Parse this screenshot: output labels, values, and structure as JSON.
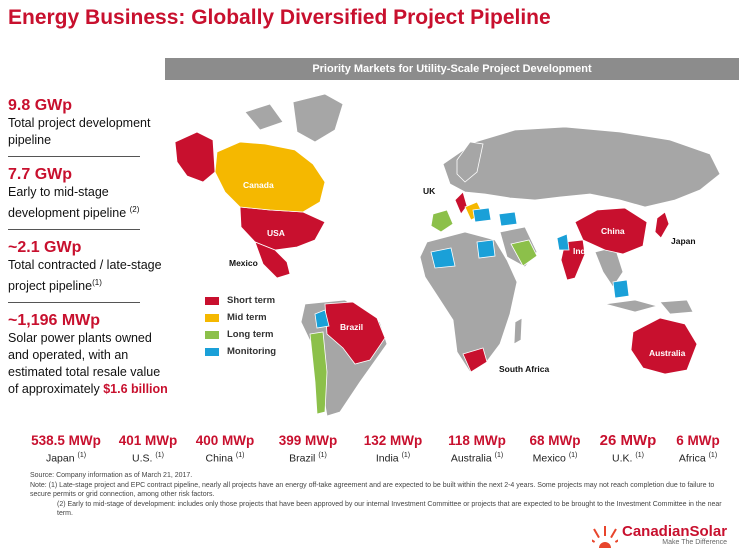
{
  "title": "Energy Business: Globally Diversified Project Pipeline",
  "banner": "Priority Markets for Utility-Scale Project Development",
  "stats": [
    {
      "value": "9.8 GWp",
      "desc": "Total project development pipeline",
      "note": "",
      "hl": ""
    },
    {
      "value": "7.7 GWp",
      "desc": "Early to mid-stage development pipeline",
      "note": "(2)",
      "hl": ""
    },
    {
      "value": "~2.1 GWp",
      "desc": "Total contracted / late-stage project pipeline",
      "note": "(1)",
      "hl": ""
    },
    {
      "value": "~1,196 MWp",
      "desc": "Solar power plants owned and operated, with an estimated total resale value of approximately",
      "note": "",
      "hl": "$1.6 billion"
    }
  ],
  "legend": [
    {
      "label": "Short term",
      "color": "#c8102e"
    },
    {
      "label": "Mid term",
      "color": "#f5b800"
    },
    {
      "label": "Long term",
      "color": "#8cc04a"
    },
    {
      "label": "Monitoring",
      "color": "#1aa0d8"
    }
  ],
  "map_labels": {
    "canada": "Canada",
    "usa": "USA",
    "mexico": "Mexico",
    "brazil": "Brazil",
    "uk": "UK",
    "china": "China",
    "india": "India",
    "japan": "Japan",
    "south_africa": "South Africa",
    "australia": "Australia"
  },
  "capacities": [
    {
      "value": "538.5 MWp",
      "country": "Japan",
      "note": "(1)"
    },
    {
      "value": "401 MWp",
      "country": "U.S.",
      "note": "(1)"
    },
    {
      "value": "400 MWp",
      "country": "China",
      "note": "(1)"
    },
    {
      "value": "399 MWp",
      "country": "Brazil",
      "note": "(1)"
    },
    {
      "value": "132 MWp",
      "country": "India",
      "note": "(1)"
    },
    {
      "value": "118 MWp",
      "country": "Australia",
      "note": "(1)"
    },
    {
      "value": "68 MWp",
      "country": "Mexico",
      "note": "(1)"
    },
    {
      "value": "26 MWp",
      "country": "U.K.",
      "note": "(1)"
    },
    {
      "value": "6 MWp",
      "country": "Africa",
      "note": "(1)"
    }
  ],
  "notes": {
    "source": "Source: Company information as of March 21, 2017.",
    "n1": "Note:  (1) Late-stage project and EPC contract pipeline, nearly all projects have an energy off-take agreement and are expected to be built within the next 2-4 years. Some projects may not reach completion due to failure to secure permits or grid connection, among other risk factors.",
    "n2": "(2)  Early to mid-stage of development: includes  only  those projects that have been approved by our internal Investment Committee or projects that are expected to be brought to the Investment Committee in the near term."
  },
  "logo": {
    "name": "CanadianSolar",
    "tagline": "Make The Difference"
  },
  "colors": {
    "accent": "#c8102e",
    "land": "#a6a6a6",
    "short": "#c8102e",
    "mid": "#f5b800",
    "long": "#8cc04a",
    "monitor": "#1aa0d8"
  }
}
